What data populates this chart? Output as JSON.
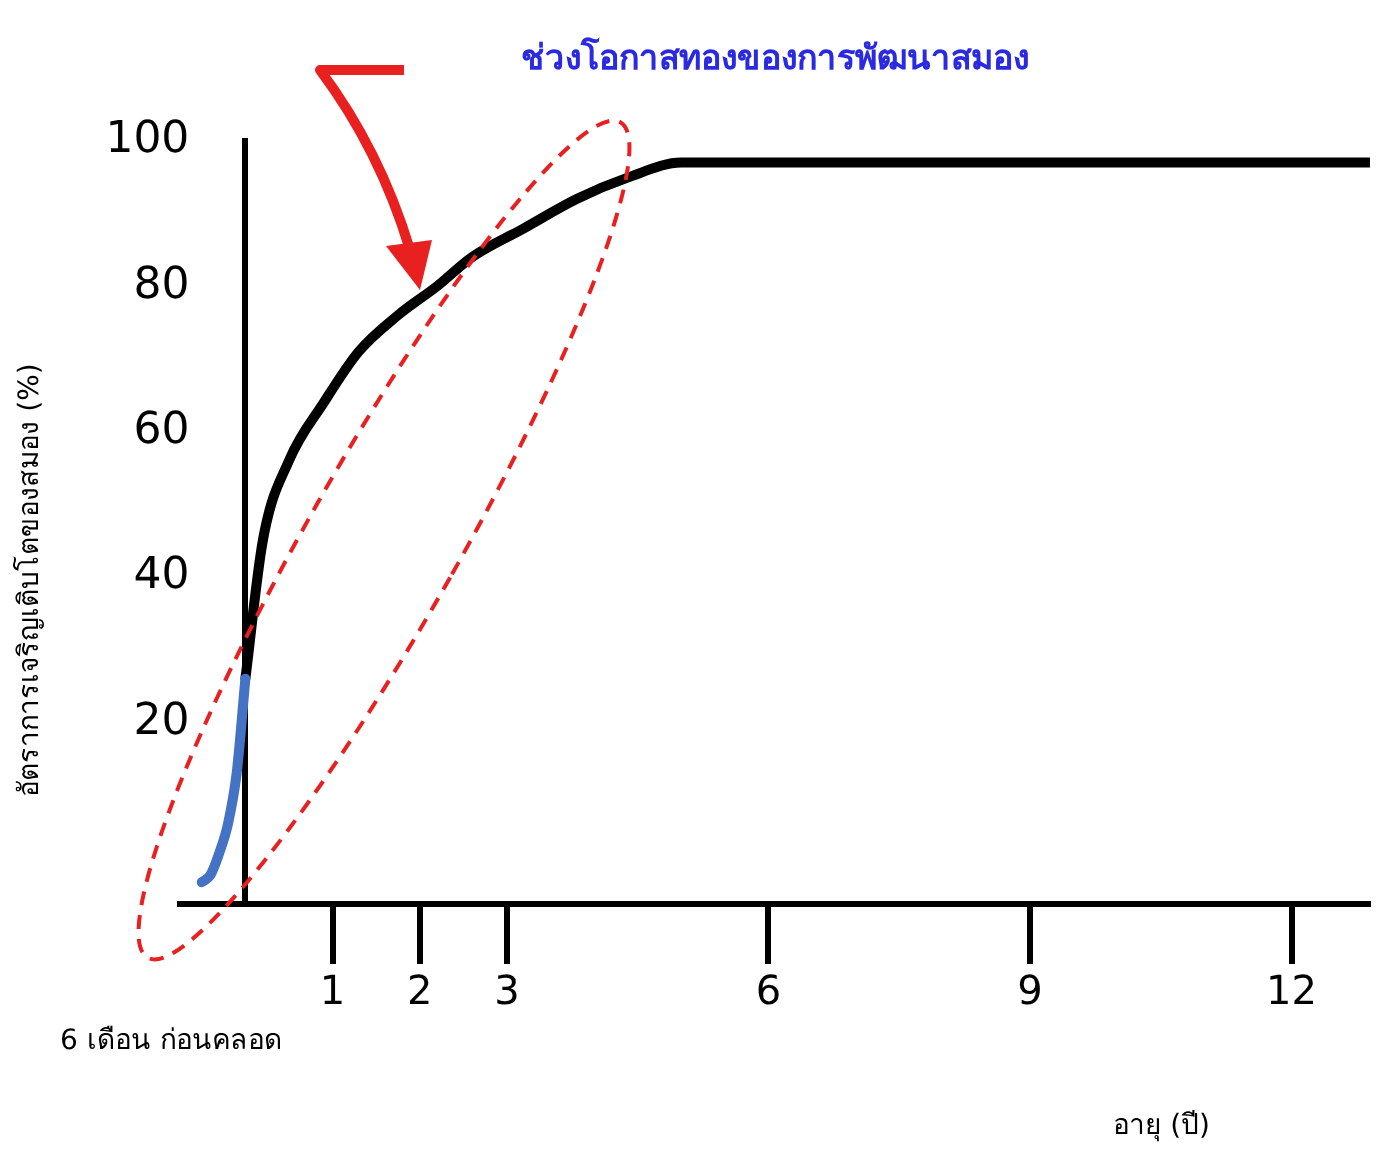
{
  "chart_data": {
    "type": "line",
    "title": "ช่วงโอกาสทองของการพัฒนาสมอง",
    "xlabel": "อายุ (ปี)",
    "ylabel": "อัตราการเจริญเติบโตของสมอง (%)",
    "series": [
      {
        "color": "#4472c4",
        "x": [
          -0.5,
          -0.4,
          -0.3,
          -0.2,
          -0.1,
          0
        ],
        "values": [
          -2,
          -1,
          2,
          6,
          13,
          26
        ]
      },
      {
        "color": "#000000",
        "x": [
          0,
          0.2,
          0.5,
          0.9,
          1.3,
          1.75,
          2.2,
          2.6,
          3.2,
          3.8,
          4.4,
          5,
          12.9
        ],
        "values": [
          26,
          45,
          56,
          64,
          71,
          76,
          80,
          84,
          88,
          92,
          95,
          97,
          97
        ]
      }
    ],
    "xlim": [
      -0.75,
      12.9
    ],
    "ylim": [
      -5,
      100
    ],
    "xticks": [
      1,
      2,
      3,
      6,
      9,
      12
    ],
    "annotations": [
      "6 เดือน ก่อนคลอด"
    ],
    "yticks": [
      20,
      40,
      60,
      80,
      100
    ],
    "grid": false,
    "legend": false,
    "marker": "none",
    "line_style": "solid"
  }
}
